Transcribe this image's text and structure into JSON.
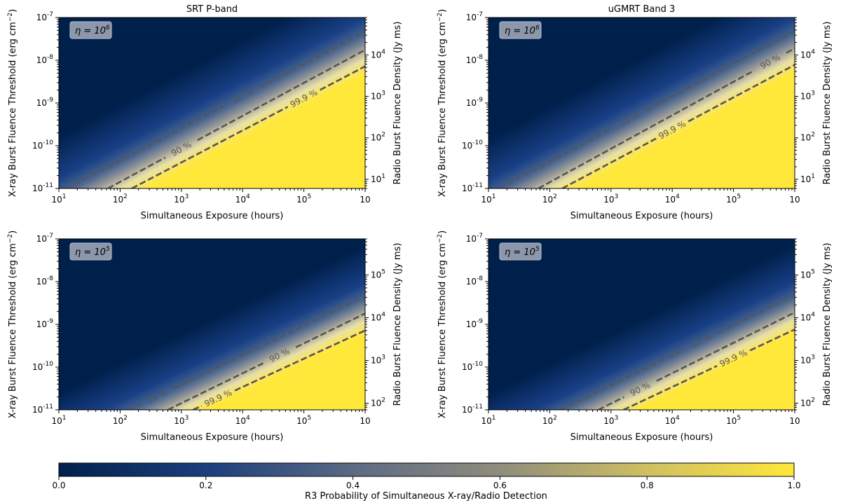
{
  "chart_data": [
    {
      "type": "heatmap",
      "title": "SRT P-band",
      "annotation_base": "η = 10",
      "annotation_exp": "6",
      "xlabel": "Simultaneous Exposure (hours)",
      "ylabel": "X-ray Burst Fluence Threshold (erg cm",
      "ylabel_sup": "−2",
      "ylabel_close": ")",
      "y2label": "Radio Burst Fluence Density (Jy ms)",
      "xscale": "log",
      "yscale": "log",
      "xlim": [
        1,
        100000
      ],
      "ylim": [
        1e-11,
        1e-07
      ],
      "xticks": [
        "1",
        "2",
        "3",
        "4",
        "5"
      ],
      "yticks": [
        "-11",
        "-10",
        "-9",
        "-8",
        "-7"
      ],
      "y2ticks": [
        "1",
        "2",
        "3",
        "4"
      ],
      "y2lim": [
        6,
        80000
      ],
      "contours": [
        {
          "level": 0.5,
          "label": "50 %",
          "label_x": 1000,
          "points": [
            [
              1.35,
              1e-11
            ],
            [
              100000,
              4.6e-08
            ]
          ]
        },
        {
          "level": 0.9,
          "label": "90 %",
          "label_x": 100,
          "points": [
            [
              6.3,
              1e-11
            ],
            [
              100000,
              1.75e-08
            ]
          ]
        },
        {
          "level": 0.999,
          "label": "99.9 %",
          "label_x": 10000,
          "points": [
            [
              15.5,
              1e-11
            ],
            [
              100000,
              7.2e-09
            ]
          ]
        }
      ]
    },
    {
      "type": "heatmap",
      "title": "uGMRT Band 3",
      "annotation_base": "η = 10",
      "annotation_exp": "6",
      "xlabel": "Simultaneous Exposure (hours)",
      "ylabel": "X-ray Burst Fluence Threshold (erg cm",
      "ylabel_sup": "−2",
      "ylabel_close": ")",
      "y2label": "Radio Burst Fluence Density (Jy ms)",
      "xscale": "log",
      "yscale": "log",
      "xlim": [
        1,
        100000
      ],
      "ylim": [
        1e-11,
        1e-07
      ],
      "xticks": [
        "1",
        "2",
        "3",
        "4",
        "5"
      ],
      "yticks": [
        "-11",
        "-10",
        "-9",
        "-8",
        "-7"
      ],
      "y2ticks": [
        "1",
        "2",
        "3",
        "4"
      ],
      "y2lim": [
        6,
        80000
      ],
      "contours": [
        {
          "level": 0.5,
          "label": "50 %",
          "label_x": 200,
          "points": [
            [
              1.5,
              1e-11
            ],
            [
              100000,
              4.8e-08
            ]
          ]
        },
        {
          "level": 0.9,
          "label": "90 %",
          "label_x": 40000,
          "points": [
            [
              6.5,
              1e-11
            ],
            [
              100000,
              1.9e-08
            ]
          ]
        },
        {
          "level": 0.999,
          "label": "99.9 %",
          "label_x": 1000,
          "points": [
            [
              16,
              1e-11
            ],
            [
              100000,
              7.8e-09
            ]
          ]
        }
      ]
    },
    {
      "type": "heatmap",
      "title": "",
      "annotation_base": "η = 10",
      "annotation_exp": "5",
      "xlabel": "Simultaneous Exposure (hours)",
      "ylabel": "X-ray Burst Fluence Threshold (erg cm",
      "ylabel_sup": "−2",
      "ylabel_close": ")",
      "y2label": "Radio Burst Fluence Density (Jy ms)",
      "xscale": "log",
      "yscale": "log",
      "xlim": [
        1,
        100000
      ],
      "ylim": [
        1e-11,
        1e-07
      ],
      "xticks": [
        "1",
        "2",
        "3",
        "4",
        "5"
      ],
      "yticks": [
        "-11",
        "-10",
        "-9",
        "-8",
        "-7"
      ],
      "y2ticks": [
        "2",
        "3",
        "4",
        "5"
      ],
      "y2lim": [
        70,
        700000
      ],
      "contours": [
        {
          "level": 0.5,
          "label": "50 %",
          "label_x": 40,
          "points": [
            [
              14,
              1e-11
            ],
            [
              100000,
              4.6e-09
            ]
          ]
        },
        {
          "level": 0.9,
          "label": "90 %",
          "label_x": 4000,
          "points": [
            [
              60,
              1e-11
            ],
            [
              100000,
              1.8e-09
            ]
          ]
        },
        {
          "level": 0.999,
          "label": "99.9 %",
          "label_x": 400,
          "points": [
            [
              155,
              1e-11
            ],
            [
              100000,
              7.2e-10
            ]
          ]
        }
      ]
    },
    {
      "type": "heatmap",
      "title": "",
      "annotation_base": "η = 10",
      "annotation_exp": "5",
      "xlabel": "Simultaneous Exposure (hours)",
      "ylabel": "X-ray Burst Fluence Threshold (erg cm",
      "ylabel_sup": "−2",
      "ylabel_close": ")",
      "y2label": "Radio Burst Fluence Density (Jy ms)",
      "xscale": "log",
      "yscale": "log",
      "xlim": [
        1,
        100000
      ],
      "ylim": [
        1e-11,
        1e-07
      ],
      "xticks": [
        "1",
        "2",
        "3",
        "4",
        "5"
      ],
      "yticks": [
        "-11",
        "-10",
        "-9",
        "-8",
        "-7"
      ],
      "y2ticks": [
        "2",
        "3",
        "4",
        "5"
      ],
      "y2lim": [
        70,
        700000
      ],
      "contours": [
        {
          "level": 0.5,
          "label": "50 %",
          "label_x": 3000,
          "points": [
            [
              15,
              1e-11
            ],
            [
              100000,
              4.8e-09
            ]
          ]
        },
        {
          "level": 0.9,
          "label": "90 %",
          "label_x": 300,
          "points": [
            [
              62,
              1e-11
            ],
            [
              100000,
              1.9e-09
            ]
          ]
        },
        {
          "level": 0.999,
          "label": "99.9 %",
          "label_x": 10000,
          "points": [
            [
              160,
              1e-11
            ],
            [
              100000,
              7.6e-10
            ]
          ]
        }
      ]
    }
  ],
  "colorbar": {
    "label": "R3 Probability of Simultaneous X-ray/Radio Detection",
    "ticks": [
      "0.0",
      "0.2",
      "0.4",
      "0.6",
      "0.8",
      "1.0"
    ],
    "range": [
      0,
      1
    ],
    "colormap": "cividis-like",
    "colors": [
      "#00204c",
      "#2b4c8a",
      "#7c7b78",
      "#c8b866",
      "#ffe83a"
    ]
  }
}
